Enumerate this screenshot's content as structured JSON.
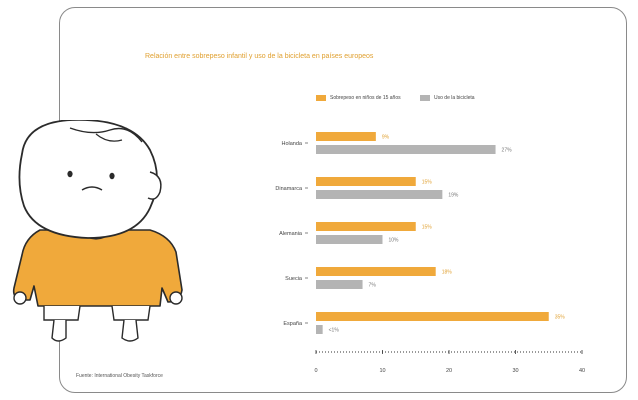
{
  "colors": {
    "accent": "#F0A93B",
    "secondary": "#B4B4B4",
    "title": "#E0A030",
    "axis": "#333333",
    "border": "#8A8A8A"
  },
  "icons": {
    "illustration": "sad-child-character"
  },
  "footer": {
    "source": "Fuente: International Obesity Taskforce"
  },
  "chart_data": {
    "type": "bar",
    "title": "Relación entre sobrepeso infantil y uso de la bicicleta en países europeos",
    "orientation": "horizontal",
    "categories": [
      "Holanda",
      "Dinamarca",
      "Alemania",
      "Suecia",
      "España"
    ],
    "series": [
      {
        "name": "Sobrepeso en niños de 15 años",
        "color": "#F0A93B",
        "values": [
          9,
          15,
          15,
          18,
          35
        ],
        "labels": [
          "9%",
          "15%",
          "15%",
          "18%",
          "35%"
        ]
      },
      {
        "name": "Uso de la bicicleta",
        "color": "#B4B4B4",
        "values": [
          27,
          19,
          10,
          7,
          1
        ],
        "labels": [
          "27%",
          "19%",
          "10%",
          "7%",
          "<1%"
        ]
      }
    ],
    "xlim": [
      0,
      40
    ],
    "xticks": [
      0,
      10,
      20,
      30,
      40
    ],
    "xticks_labels": [
      "0",
      "10",
      "20",
      "30",
      "40"
    ],
    "legend_position": "top",
    "grid": false
  }
}
